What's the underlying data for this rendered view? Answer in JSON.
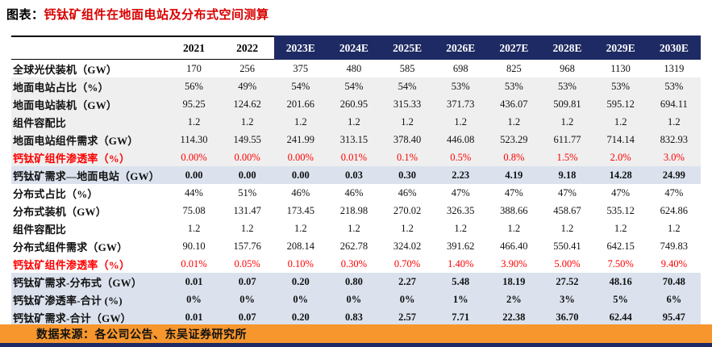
{
  "title": {
    "prefix": "图表：",
    "text": "钙钛矿组件在地面电站及分布式空间测算"
  },
  "colors": {
    "header_navy": "#1e2a63",
    "highlight_row_bg": "#dbe2ee",
    "band_row_bg": "#efefef",
    "red_text": "#fe0000",
    "title_red": "#d80000",
    "source_bar_orange": "#f6962d",
    "bottom_line_navy": "#1e2a63"
  },
  "chart_data": {
    "type": "table",
    "title": "钙钛矿组件在地面电站及分布式空间测算",
    "columns": [
      "2021",
      "2022",
      "2023E",
      "2024E",
      "2025E",
      "2026E",
      "2027E",
      "2028E",
      "2029E",
      "2030E"
    ],
    "navy_header_from": "2023E",
    "rows": [
      {
        "label": "全球光伏装机（GW）",
        "style": "plain",
        "values": [
          "170",
          "256",
          "375",
          "480",
          "585",
          "698",
          "825",
          "968",
          "1130",
          "1319"
        ]
      },
      {
        "label": "地面电站占比（%）",
        "style": "band",
        "values": [
          "56%",
          "49%",
          "54%",
          "54%",
          "54%",
          "53%",
          "53%",
          "53%",
          "53%",
          "53%"
        ]
      },
      {
        "label": "地面电站装机（GW）",
        "style": "band",
        "values": [
          "95.25",
          "124.62",
          "201.66",
          "260.95",
          "315.33",
          "371.73",
          "436.07",
          "509.81",
          "595.12",
          "694.11"
        ]
      },
      {
        "label": "组件容配比",
        "style": "band",
        "values": [
          "1.2",
          "1.2",
          "1.2",
          "1.2",
          "1.2",
          "1.2",
          "1.2",
          "1.2",
          "1.2",
          "1.2"
        ]
      },
      {
        "label": "地面电站组件需求（GW）",
        "style": "band",
        "values": [
          "114.30",
          "149.55",
          "241.99",
          "313.15",
          "378.40",
          "446.08",
          "523.29",
          "611.77",
          "714.14",
          "832.93"
        ]
      },
      {
        "label": "钙钛矿组件渗透率（%）",
        "style": "band red",
        "values": [
          "0.00%",
          "0.00%",
          "0.00%",
          "0.01%",
          "0.1%",
          "0.5%",
          "0.8%",
          "1.5%",
          "2.0%",
          "3.0%"
        ]
      },
      {
        "label": "钙钛矿需求—地面电站（GW）",
        "style": "highlight",
        "values": [
          "0.00",
          "0.00",
          "0.00",
          "0.03",
          "0.30",
          "2.23",
          "4.19",
          "9.18",
          "14.28",
          "24.99"
        ]
      },
      {
        "label": "分布式占比（%）",
        "style": "plain",
        "values": [
          "44%",
          "51%",
          "46%",
          "46%",
          "46%",
          "47%",
          "47%",
          "47%",
          "47%",
          "47%"
        ]
      },
      {
        "label": "分布式装机（GW）",
        "style": "plain",
        "values": [
          "75.08",
          "131.47",
          "173.45",
          "218.98",
          "270.02",
          "326.35",
          "388.66",
          "458.67",
          "535.12",
          "624.86"
        ]
      },
      {
        "label": "组件容配比",
        "style": "plain",
        "values": [
          "1.2",
          "1.2",
          "1.2",
          "1.2",
          "1.2",
          "1.2",
          "1.2",
          "1.2",
          "1.2",
          "1.2"
        ]
      },
      {
        "label": "分布式组件需求（GW）",
        "style": "plain",
        "values": [
          "90.10",
          "157.76",
          "208.14",
          "262.78",
          "324.02",
          "391.62",
          "466.40",
          "550.41",
          "642.15",
          "749.83"
        ]
      },
      {
        "label": "钙钛矿组件渗透率（%）",
        "style": "red",
        "values": [
          "0.01%",
          "0.05%",
          "0.10%",
          "0.30%",
          "0.70%",
          "1.40%",
          "3.90%",
          "5.00%",
          "7.50%",
          "9.40%"
        ]
      },
      {
        "label": "钙钛矿需求-分布式（GW）",
        "style": "highlight",
        "values": [
          "0.01",
          "0.07",
          "0.20",
          "0.80",
          "2.27",
          "5.48",
          "18.19",
          "27.52",
          "48.16",
          "70.48"
        ]
      },
      {
        "label": "钙钛矿渗透率-合计 (%)",
        "style": "highlight",
        "values": [
          "0%",
          "0%",
          "0%",
          "0%",
          "0%",
          "1%",
          "2%",
          "3%",
          "5%",
          "6%"
        ]
      },
      {
        "label": "钙钛矿需求-合计（GW）",
        "style": "highlight",
        "values": [
          "0.01",
          "0.07",
          "0.20",
          "0.83",
          "2.57",
          "7.71",
          "22.38",
          "36.70",
          "62.44",
          "95.47"
        ]
      }
    ]
  },
  "footer": {
    "source": "数据来源：各公司公告、东吴证券研究所"
  }
}
